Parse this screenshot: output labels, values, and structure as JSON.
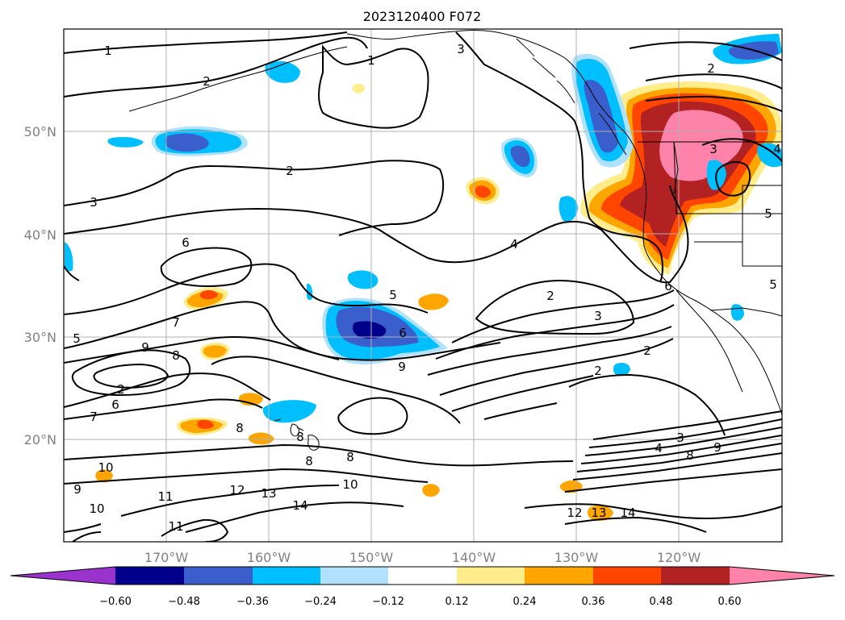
{
  "title": "2023120400 F072",
  "colors": {
    "purple": "#9a32cd",
    "navy": "#00008b",
    "royal": "#3a5fcd",
    "sky": "#00bfff",
    "pale_blue": "#b0e2ff",
    "white": "#ffffff",
    "pale_yellow": "#ffec8b",
    "orange": "#ffa500",
    "orange_red": "#ff4500",
    "dark_red": "#b22222",
    "pink": "#ff82ab"
  },
  "map": {
    "lat_labels": [
      "50°N",
      "40°N",
      "30°N",
      "20°N"
    ],
    "lon_labels": [
      "170°W",
      "160°W",
      "150°W",
      "140°W",
      "130°W",
      "120°W"
    ]
  },
  "colorbar": {
    "ticks": [
      "−0.60",
      "−0.48",
      "−0.36",
      "−0.24",
      "−0.12",
      "0.12",
      "0.24",
      "0.36",
      "0.48",
      "0.60"
    ]
  },
  "contour_labels": [
    "1",
    "1",
    "2",
    "3",
    "2",
    "2",
    "3",
    "4",
    "6",
    "5",
    "6",
    "2",
    "3",
    "7",
    "9",
    "8",
    "2",
    "6",
    "7",
    "9",
    "2",
    "2",
    "8",
    "8",
    "8",
    "8",
    "10",
    "9",
    "10",
    "11",
    "11",
    "12",
    "13",
    "14",
    "10",
    "4",
    "3",
    "8",
    "9",
    "12",
    "13",
    "14",
    "5",
    "6",
    "5",
    "5",
    "3",
    "4"
  ]
}
